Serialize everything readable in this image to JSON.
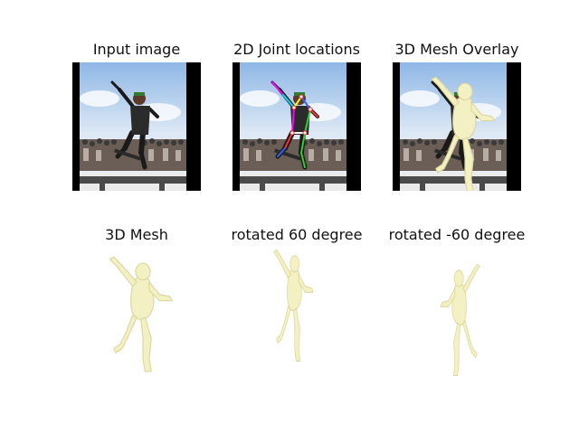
{
  "figure": {
    "titles": {
      "input_image": "Input image",
      "joints": "2D Joint locations",
      "overlay": "3D Mesh Overlay",
      "mesh": "3D Mesh",
      "rot_pos60": "rotated 60 degree",
      "rot_neg60": "rotated -60 degree"
    }
  },
  "colors": {
    "background": "#ffffff",
    "border": "#000000",
    "mesh": "#f3f0c4",
    "mesh_shade": "#dcd79b",
    "sky": "#cfe1f2",
    "sky_top": "#8fb7e6",
    "crowd": "#6b5e56",
    "ramp": "#4a4a4a",
    "rider_dark": "#1a1a1a",
    "joint_colors": [
      "#ff3030",
      "#2fd12f",
      "#3060ff",
      "#ff00ff",
      "#00e5ff",
      "#ffff00",
      "#ffffff"
    ]
  },
  "icons": {
    "skater": "skateboarder-photo",
    "mesh": "human-mesh-figure"
  }
}
